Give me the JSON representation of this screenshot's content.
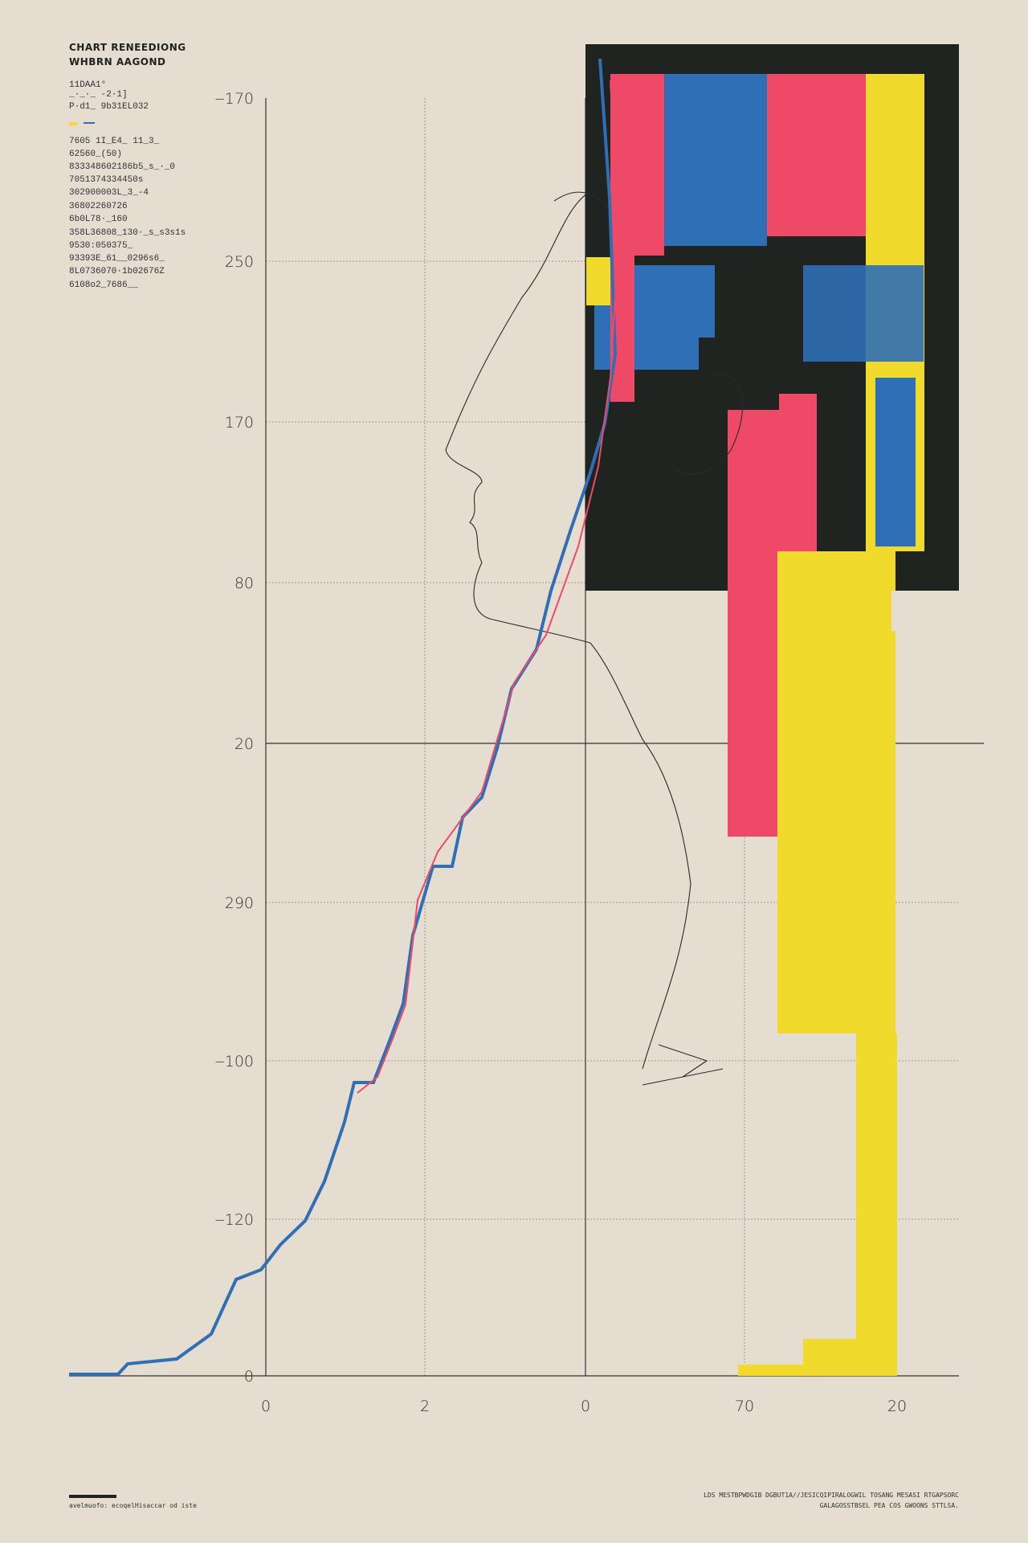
{
  "header": {
    "title": "CHART RENEEDIONG",
    "subtitle": "WHBRN AAGOND",
    "lines": [
      "11DAA1°",
      "_·_·_ -2·1]",
      "P·d1_ 9b31EL032",
      "7605 1I_E4_ 11_3_",
      "62560_(50)",
      "833348602186b5_s_·_0",
      "7051374334450s",
      "302900003L_3_-4",
      "36802260726",
      "6b0L78·_160",
      "358L36808_130·_s_s3s1s",
      "9530:050375_",
      "93393E_61__0296s6_",
      "8L0736070·1b02676Z",
      "6108o2_7686__"
    ]
  },
  "axes": {
    "y_labels": [
      "‒170",
      "250",
      "170",
      "80",
      "20",
      "290",
      "‒100",
      "‒120",
      "0"
    ],
    "x_labels": [
      "0",
      "2",
      "0",
      "70",
      "20"
    ]
  },
  "footer": {
    "left": "avelmuofo: ecoqelHisaccar od iste",
    "right": [
      "LDS MESTBPWDGIB DGBUT1A//JESICQIPIRALOGWIL TOSANG MESASI RTGAPSORC",
      "GALAGOSSTBSEL  PEA COS  GWOONS  STTLSA."
    ]
  }
}
